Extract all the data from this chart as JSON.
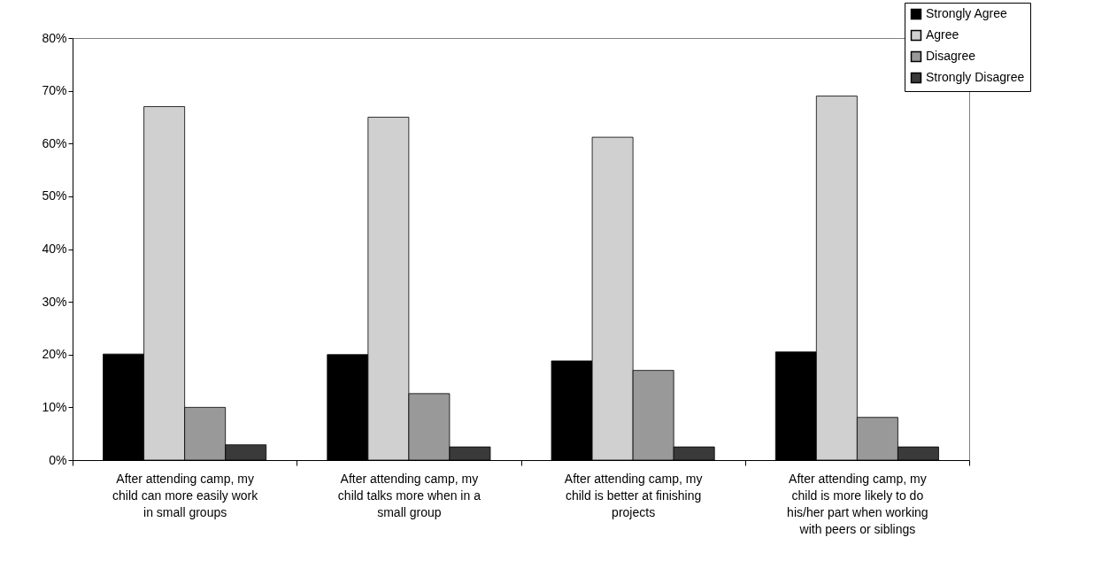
{
  "chart_data": {
    "type": "bar",
    "categories": [
      "After attending camp, my child can more easily work in small groups",
      "After attending camp, my child talks more when in a small group",
      "After attending camp, my child is better at finishing projects",
      "After attending camp, my child is more likely to do his/her part when working with peers or siblings"
    ],
    "series": [
      {
        "name": "Strongly Agree",
        "color": "#000000",
        "values": [
          20.1,
          20,
          18.8,
          20.5
        ]
      },
      {
        "name": "Agree",
        "color": "#d0d0d0",
        "values": [
          67,
          65,
          61.2,
          69
        ]
      },
      {
        "name": "Disagree",
        "color": "#999999",
        "values": [
          10,
          12.6,
          17,
          8.1
        ]
      },
      {
        "name": "Strongly Disagree",
        "color": "#3a3a3a",
        "values": [
          2.9,
          2.5,
          2.5,
          2.5
        ]
      }
    ],
    "ylim": [
      0,
      80
    ],
    "yticks": [
      {
        "value": 0,
        "label": "0%"
      },
      {
        "value": 10,
        "label": "10%"
      },
      {
        "value": 20,
        "label": "20%"
      },
      {
        "value": 30,
        "label": "30%"
      },
      {
        "value": 40,
        "label": "40%"
      },
      {
        "value": 50,
        "label": "50%"
      },
      {
        "value": 60,
        "label": "60%"
      },
      {
        "value": 70,
        "label": "70%"
      },
      {
        "value": 80,
        "label": "80%"
      }
    ],
    "grid": false,
    "legend": "top right"
  }
}
